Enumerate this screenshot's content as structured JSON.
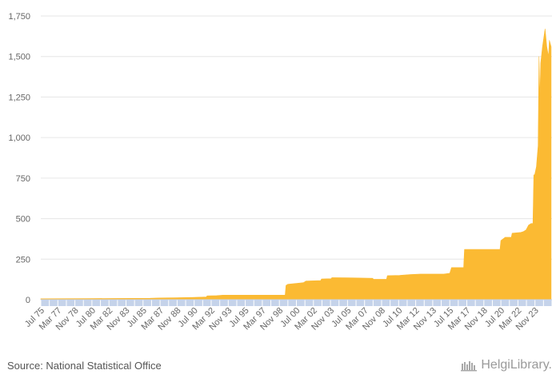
{
  "chart_data": {
    "type": "area",
    "title": "",
    "xlabel": "",
    "ylabel": "",
    "ylim": [
      0,
      1750
    ],
    "yticks": [
      0,
      250,
      500,
      750,
      1000,
      1250,
      1500,
      1750
    ],
    "ytick_labels": [
      "0",
      "250",
      "500",
      "750",
      "1,000",
      "1,250",
      "1,500",
      "1,750"
    ],
    "x_tick_labels": [
      "Jul 75",
      "Mar 77",
      "Nov 78",
      "Jul 80",
      "Mar 82",
      "Nov 83",
      "Jul 85",
      "Mar 87",
      "Nov 88",
      "Jul 90",
      "Mar 92",
      "Nov 93",
      "Jul 95",
      "Mar 97",
      "Nov 98",
      "Jul 00",
      "Mar 02",
      "Nov 03",
      "Jul 05",
      "Mar 07",
      "Nov 08",
      "Jul 10",
      "Mar 12",
      "Nov 13",
      "Jul 15",
      "Mar 17",
      "Nov 18",
      "Jul 20",
      "Mar 22",
      "Nov 23"
    ],
    "grid": true,
    "color": "#FBBA33",
    "series": [
      {
        "points": [
          [
            "1975-07",
            6
          ],
          [
            "1980-01",
            7
          ],
          [
            "1986-01",
            9
          ],
          [
            "1987-01",
            11
          ],
          [
            "1988-06",
            12
          ],
          [
            "1990-01",
            14
          ],
          [
            "1991-06",
            17
          ],
          [
            "1991-07",
            24
          ],
          [
            "1992-06",
            25
          ],
          [
            "1993-01",
            28
          ],
          [
            "1999-01",
            28
          ],
          [
            "1999-02",
            88
          ],
          [
            "1999-04",
            95
          ],
          [
            "2000-01",
            100
          ],
          [
            "2000-10",
            105
          ],
          [
            "2001-01",
            115
          ],
          [
            "2002-06",
            118
          ],
          [
            "2002-07",
            128
          ],
          [
            "2003-06",
            130
          ],
          [
            "2003-07",
            136
          ],
          [
            "2005-01",
            135
          ],
          [
            "2006-01",
            134
          ],
          [
            "2007-06",
            132
          ],
          [
            "2007-07",
            126
          ],
          [
            "2008-10",
            126
          ],
          [
            "2008-11",
            148
          ],
          [
            "2010-01",
            150
          ],
          [
            "2011-01",
            155
          ],
          [
            "2012-01",
            158
          ],
          [
            "2014-04",
            158
          ],
          [
            "2014-11",
            163
          ],
          [
            "2015-01",
            198
          ],
          [
            "2016-03",
            198
          ],
          [
            "2016-04",
            310
          ],
          [
            "2019-09",
            310
          ],
          [
            "2019-10",
            365
          ],
          [
            "2020-03",
            385
          ],
          [
            "2020-10",
            385
          ],
          [
            "2020-11",
            410
          ],
          [
            "2021-09",
            415
          ],
          [
            "2021-12",
            420
          ],
          [
            "2022-03",
            430
          ],
          [
            "2022-06",
            460
          ],
          [
            "2022-09",
            470
          ],
          [
            "2022-11",
            470
          ],
          [
            "2022-12",
            770
          ],
          [
            "2023-01",
            770
          ],
          [
            "2023-03",
            820
          ],
          [
            "2023-05",
            950
          ],
          [
            "2023-06",
            1500
          ],
          [
            "2023-07",
            1240
          ],
          [
            "2023-08",
            1460
          ],
          [
            "2023-10",
            1560
          ],
          [
            "2024-01",
            1670
          ],
          [
            "2024-03",
            1560
          ],
          [
            "2024-05",
            1500
          ],
          [
            "2024-06",
            1600
          ],
          [
            "2024-08",
            1560
          ]
        ]
      }
    ]
  },
  "footer": {
    "source": "Source: National Statistical Office",
    "brand": "HelgiLibrary."
  }
}
